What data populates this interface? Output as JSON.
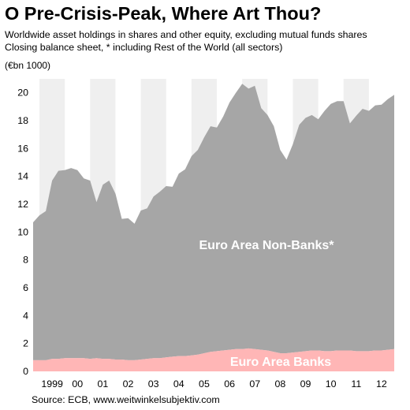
{
  "title": "O Pre-Crisis-Peak, Where Art Thou?",
  "subtitle_line1": "Worldwide asset holdings in shares and other equity, excluding mutual funds shares",
  "subtitle_line2": "Closing balance sheet, * including Rest of the World (all sectors)",
  "unit_label": "(€bn 1000)",
  "source": "Source: ECB, www.weitwinkelsubjektiv.com",
  "colors": {
    "non_banks": "#a6a6a6",
    "banks": "#ffb6b6",
    "year_band": "#efefef",
    "background": "#ffffff"
  },
  "chart_data": {
    "type": "area",
    "stacked": true,
    "ylim": [
      0,
      21
    ],
    "yticks": [
      0,
      2,
      4,
      6,
      8,
      10,
      12,
      14,
      16,
      18,
      20
    ],
    "xlim": [
      1998.75,
      2013.0
    ],
    "xtick_labels": [
      {
        "label": "1999",
        "x": 1999.5
      },
      {
        "label": "00",
        "x": 2000.5
      },
      {
        "label": "01",
        "x": 2001.5
      },
      {
        "label": "02",
        "x": 2002.5
      },
      {
        "label": "03",
        "x": 2003.5
      },
      {
        "label": "04",
        "x": 2004.5
      },
      {
        "label": "05",
        "x": 2005.5
      },
      {
        "label": "06",
        "x": 2006.5
      },
      {
        "label": "07",
        "x": 2007.5
      },
      {
        "label": "08",
        "x": 2008.5
      },
      {
        "label": "09",
        "x": 2009.5
      },
      {
        "label": "10",
        "x": 2010.5
      },
      {
        "label": "11",
        "x": 2011.5
      },
      {
        "label": "12",
        "x": 2012.5
      }
    ],
    "year_bands": [
      1999,
      2001,
      2003,
      2005,
      2007,
      2009,
      2011
    ],
    "grid": false,
    "legend": "none",
    "x": [
      1998.75,
      1999.0,
      1999.25,
      1999.5,
      1999.75,
      2000.0,
      2000.25,
      2000.5,
      2000.75,
      2001.0,
      2001.25,
      2001.5,
      2001.75,
      2002.0,
      2002.25,
      2002.5,
      2002.75,
      2003.0,
      2003.25,
      2003.5,
      2003.75,
      2004.0,
      2004.25,
      2004.5,
      2004.75,
      2005.0,
      2005.25,
      2005.5,
      2005.75,
      2006.0,
      2006.25,
      2006.5,
      2006.75,
      2007.0,
      2007.25,
      2007.5,
      2007.75,
      2008.0,
      2008.25,
      2008.5,
      2008.75,
      2009.0,
      2009.25,
      2009.5,
      2009.75,
      2010.0,
      2010.25,
      2010.5,
      2010.75,
      2011.0,
      2011.25,
      2011.5,
      2011.75,
      2012.0,
      2012.25,
      2012.5,
      2012.75,
      2013.0
    ],
    "series": [
      {
        "name": "Euro Area Banks",
        "values": [
          0.8,
          0.8,
          0.8,
          0.9,
          0.9,
          0.95,
          0.95,
          0.95,
          0.95,
          0.9,
          0.95,
          0.9,
          0.9,
          0.85,
          0.85,
          0.8,
          0.8,
          0.85,
          0.9,
          0.95,
          0.95,
          1.0,
          1.05,
          1.1,
          1.1,
          1.15,
          1.2,
          1.3,
          1.4,
          1.45,
          1.5,
          1.55,
          1.6,
          1.6,
          1.65,
          1.6,
          1.55,
          1.5,
          1.4,
          1.3,
          1.3,
          1.35,
          1.4,
          1.45,
          1.5,
          1.5,
          1.45,
          1.45,
          1.5,
          1.5,
          1.5,
          1.45,
          1.45,
          1.45,
          1.5,
          1.5,
          1.55,
          1.6
        ]
      },
      {
        "name": "Euro Area Non-Banks*",
        "values": [
          9.9,
          10.4,
          10.7,
          12.8,
          13.5,
          13.5,
          13.65,
          13.5,
          12.9,
          12.8,
          11.2,
          12.5,
          12.8,
          11.9,
          10.1,
          10.2,
          9.8,
          10.7,
          10.8,
          11.6,
          11.95,
          12.3,
          12.2,
          13.1,
          13.4,
          14.3,
          14.7,
          15.5,
          16.2,
          16.05,
          16.8,
          17.75,
          18.4,
          19.05,
          18.65,
          18.9,
          17.35,
          16.9,
          16.2,
          14.6,
          13.9,
          14.95,
          16.3,
          16.75,
          16.9,
          16.6,
          17.25,
          17.75,
          17.9,
          17.9,
          16.3,
          16.9,
          17.4,
          17.25,
          17.6,
          17.65,
          18.0,
          18.25
        ]
      }
    ]
  }
}
